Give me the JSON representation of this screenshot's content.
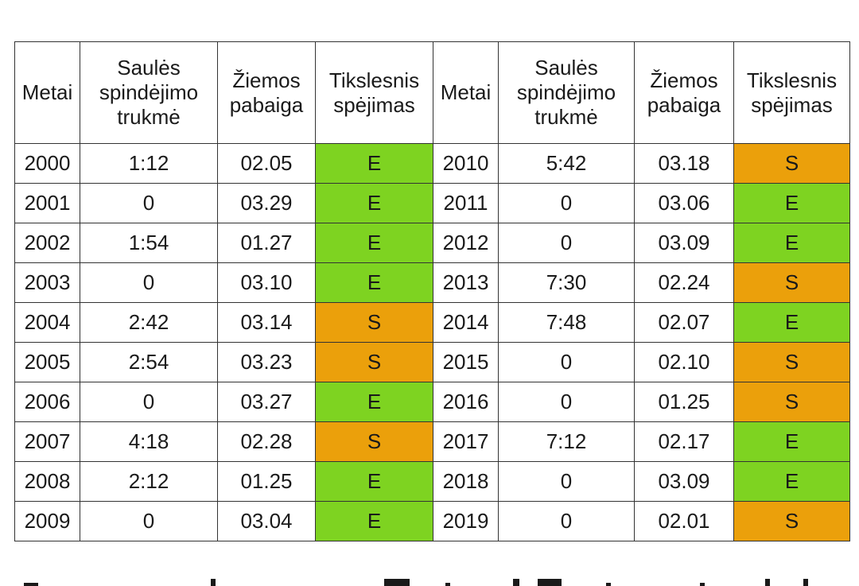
{
  "headers": {
    "year": "Metai",
    "sunshine": [
      "Saulės",
      "spindėjimo",
      "trukmė"
    ],
    "winter_end": [
      "Žiemos",
      "pabaiga"
    ],
    "prediction": [
      "Tikslesnis",
      "spėjimas"
    ]
  },
  "colors": {
    "E": "#7ed321",
    "S": "#eba00b"
  },
  "rows": [
    {
      "left": {
        "year": "2000",
        "sunshine": "1:12",
        "winter_end": "02.05",
        "prediction": "E"
      },
      "right": {
        "year": "2010",
        "sunshine": "5:42",
        "winter_end": "03.18",
        "prediction": "S"
      }
    },
    {
      "left": {
        "year": "2001",
        "sunshine": "0",
        "winter_end": "03.29",
        "prediction": "E"
      },
      "right": {
        "year": "2011",
        "sunshine": "0",
        "winter_end": "03.06",
        "prediction": "E"
      }
    },
    {
      "left": {
        "year": "2002",
        "sunshine": "1:54",
        "winter_end": "01.27",
        "prediction": "E"
      },
      "right": {
        "year": "2012",
        "sunshine": "0",
        "winter_end": "03.09",
        "prediction": "E"
      }
    },
    {
      "left": {
        "year": "2003",
        "sunshine": "0",
        "winter_end": "03.10",
        "prediction": "E"
      },
      "right": {
        "year": "2013",
        "sunshine": "7:30",
        "winter_end": "02.24",
        "prediction": "S"
      }
    },
    {
      "left": {
        "year": "2004",
        "sunshine": "2:42",
        "winter_end": "03.14",
        "prediction": "S"
      },
      "right": {
        "year": "2014",
        "sunshine": "7:48",
        "winter_end": "02.07",
        "prediction": "E"
      }
    },
    {
      "left": {
        "year": "2005",
        "sunshine": "2:54",
        "winter_end": "03.23",
        "prediction": "S"
      },
      "right": {
        "year": "2015",
        "sunshine": "0",
        "winter_end": "02.10",
        "prediction": "S"
      }
    },
    {
      "left": {
        "year": "2006",
        "sunshine": "0",
        "winter_end": "03.27",
        "prediction": "E"
      },
      "right": {
        "year": "2016",
        "sunshine": "0",
        "winter_end": "01.25",
        "prediction": "S"
      }
    },
    {
      "left": {
        "year": "2007",
        "sunshine": "4:18",
        "winter_end": "02.28",
        "prediction": "S"
      },
      "right": {
        "year": "2017",
        "sunshine": "7:12",
        "winter_end": "02.17",
        "prediction": "E"
      }
    },
    {
      "left": {
        "year": "2008",
        "sunshine": "2:12",
        "winter_end": "01.25",
        "prediction": "E"
      },
      "right": {
        "year": "2018",
        "sunshine": "0",
        "winter_end": "03.09",
        "prediction": "E"
      }
    },
    {
      "left": {
        "year": "2009",
        "sunshine": "0",
        "winter_end": "03.04",
        "prediction": "E"
      },
      "right": {
        "year": "2019",
        "sunshine": "0",
        "winter_end": "02.01",
        "prediction": "S"
      }
    }
  ]
}
